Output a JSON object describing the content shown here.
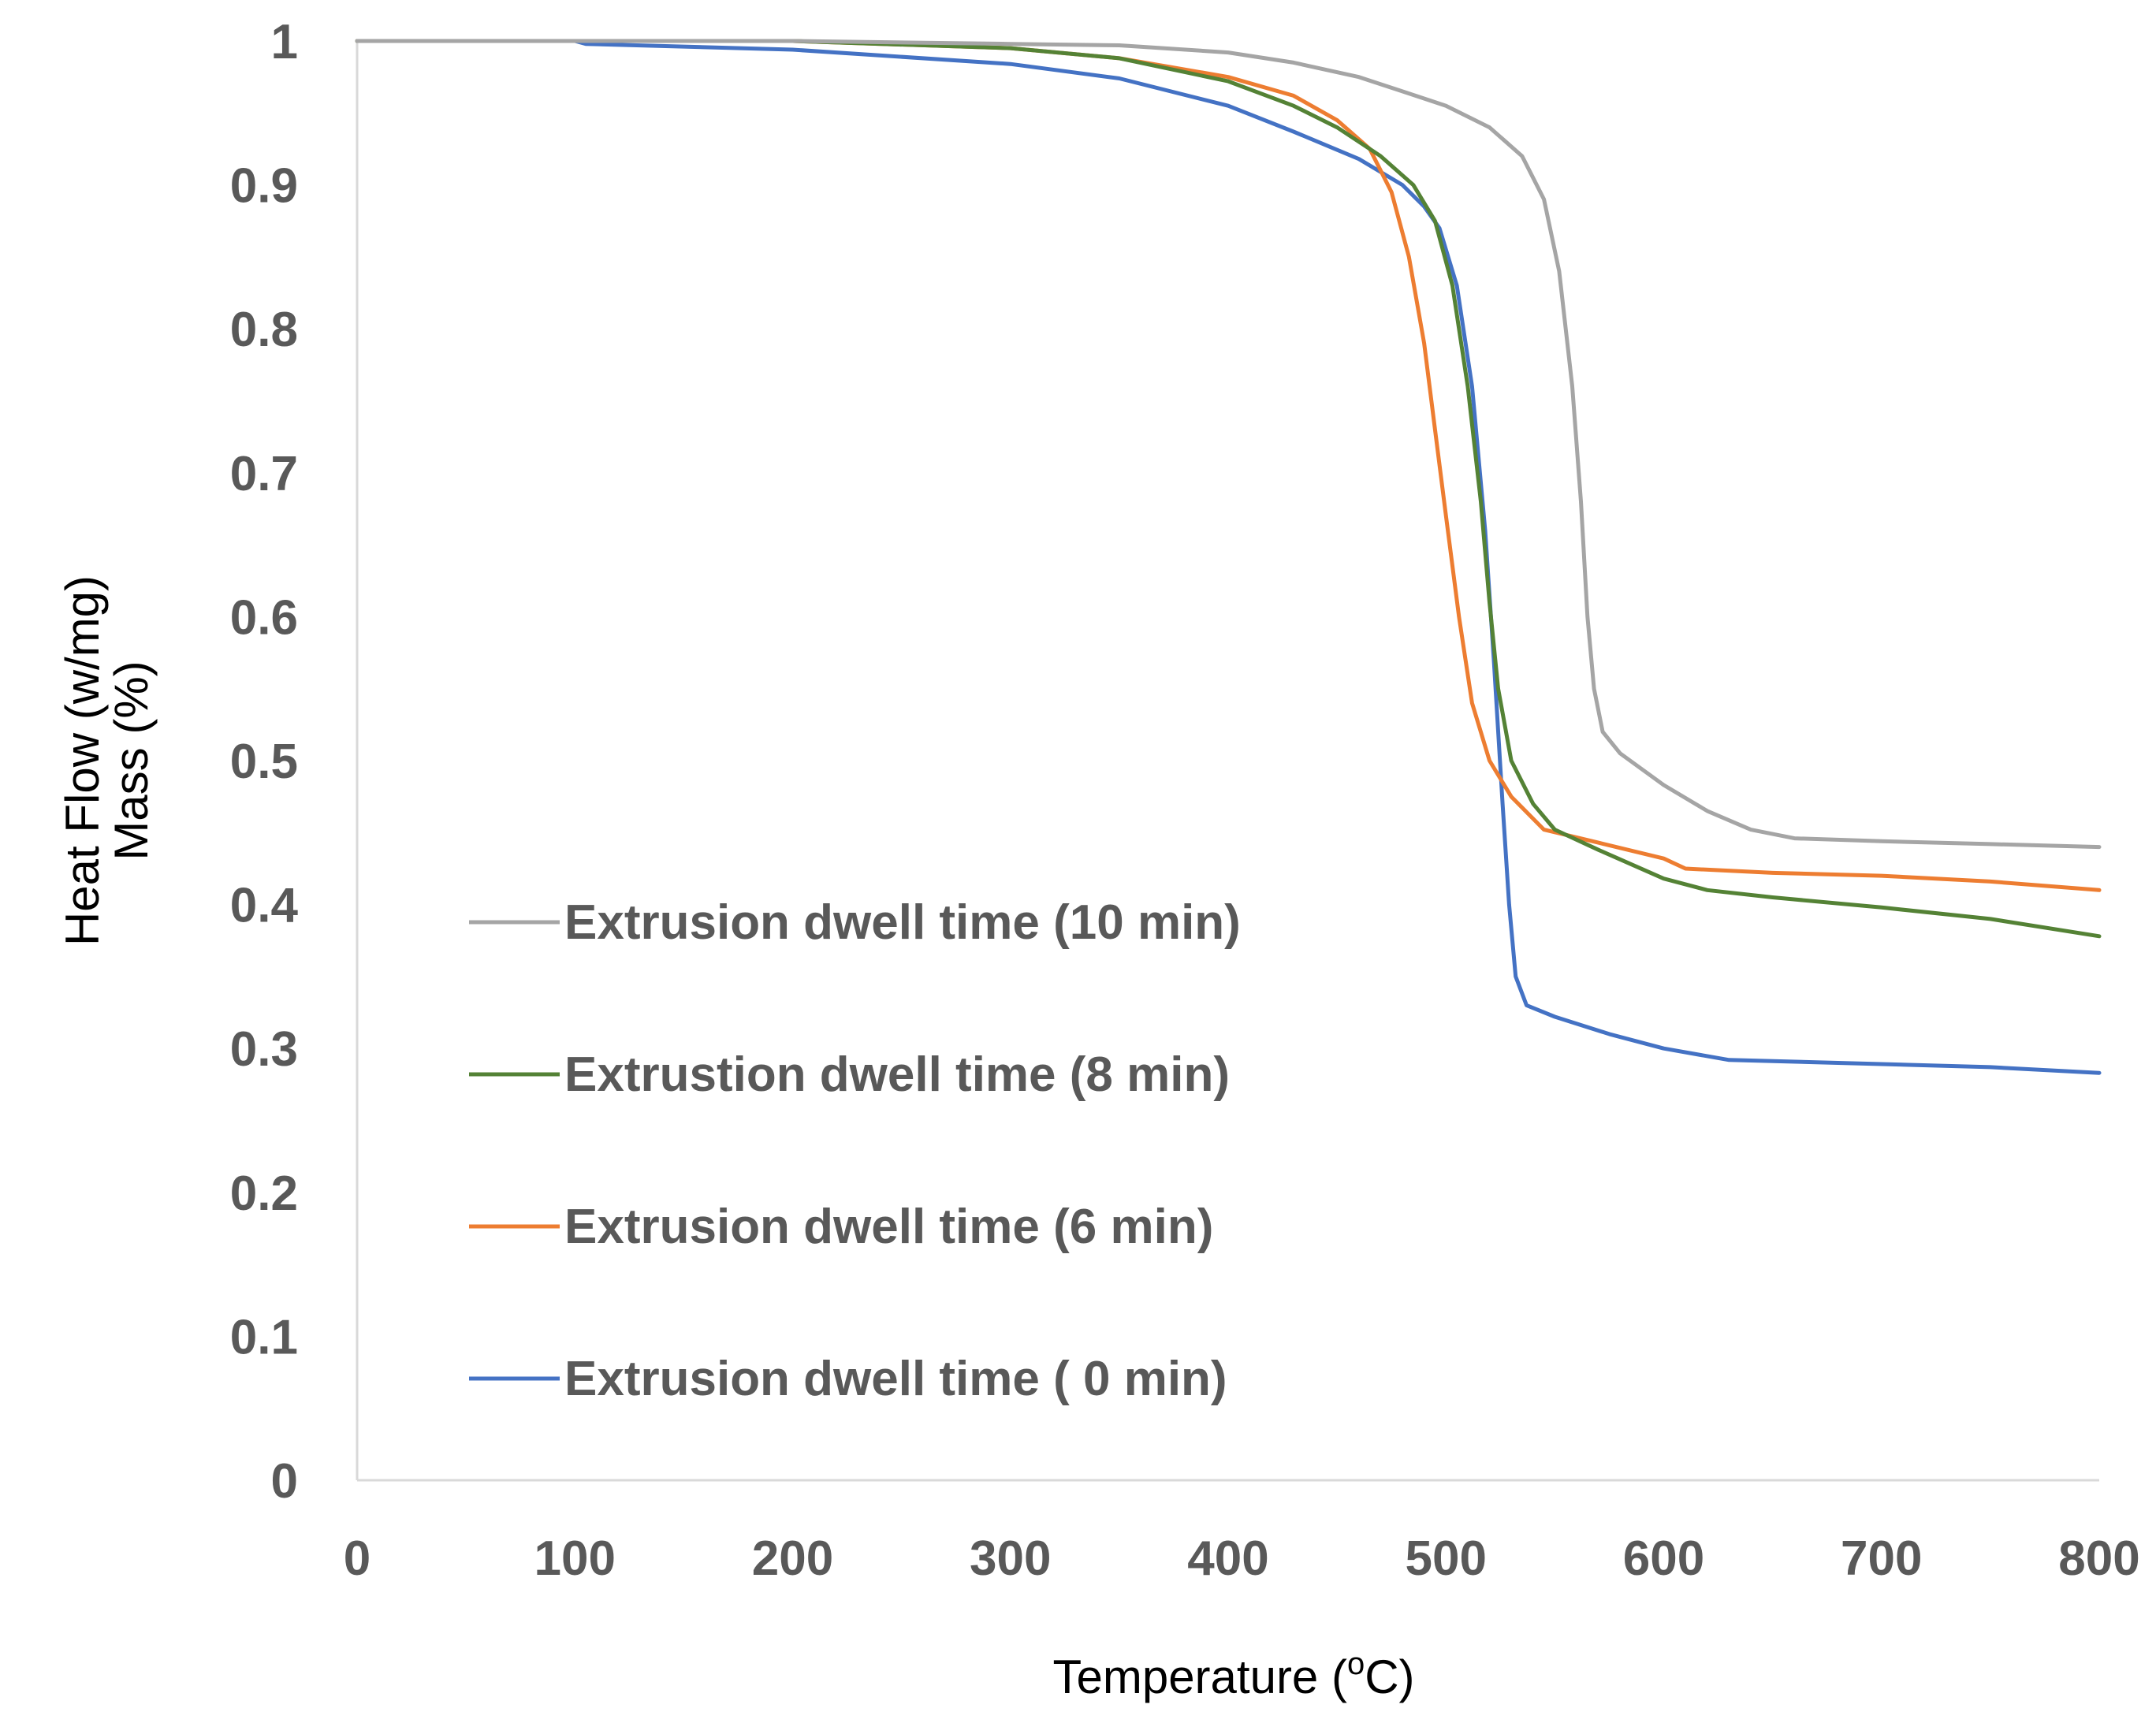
{
  "chart_data": {
    "type": "line",
    "title": "",
    "xlabel": "Temperature (°C)",
    "xlabel_parts": {
      "main": "Temperature (",
      "superscript": "o",
      "tail": "C)"
    },
    "ylabel_lines": [
      "Heat Flow (w/mg)",
      "Mass (%)"
    ],
    "xlim": [
      0,
      800
    ],
    "ylim": [
      0,
      1
    ],
    "x_ticks": [
      0,
      100,
      200,
      300,
      400,
      500,
      600,
      700,
      800
    ],
    "y_ticks": [
      0,
      0.1,
      0.2,
      0.3,
      0.4,
      0.5,
      0.6,
      0.7,
      0.8,
      0.9,
      1
    ],
    "y_tick_labels": [
      "0",
      "0.1",
      "0.2",
      "0.3",
      "0.4",
      "0.5",
      "0.6",
      "0.7",
      "0.8",
      "0.9",
      "1"
    ],
    "grid": false,
    "legend_position": "lower-left inside plot",
    "series": [
      {
        "name": "Extrusion dwell time (10 min)",
        "color": "#a5a5a5",
        "points": [
          [
            0,
            1
          ],
          [
            100,
            1
          ],
          [
            200,
            1
          ],
          [
            300,
            0.998
          ],
          [
            350,
            0.997
          ],
          [
            400,
            0.992
          ],
          [
            430,
            0.985
          ],
          [
            460,
            0.975
          ],
          [
            480,
            0.965
          ],
          [
            500,
            0.955
          ],
          [
            520,
            0.94
          ],
          [
            535,
            0.92
          ],
          [
            545,
            0.89
          ],
          [
            552,
            0.84
          ],
          [
            558,
            0.76
          ],
          [
            562,
            0.68
          ],
          [
            565,
            0.6
          ],
          [
            568,
            0.55
          ],
          [
            572,
            0.52
          ],
          [
            580,
            0.505
          ],
          [
            600,
            0.483
          ],
          [
            620,
            0.465
          ],
          [
            640,
            0.452
          ],
          [
            660,
            0.446
          ],
          [
            700,
            0.444
          ],
          [
            750,
            0.442
          ],
          [
            800,
            0.44
          ]
        ]
      },
      {
        "name": "Extrustion dwell time (8 min)",
        "color": "#548235",
        "points": [
          [
            0,
            1
          ],
          [
            100,
            1
          ],
          [
            200,
            1
          ],
          [
            300,
            0.995
          ],
          [
            350,
            0.988
          ],
          [
            400,
            0.972
          ],
          [
            430,
            0.955
          ],
          [
            450,
            0.94
          ],
          [
            470,
            0.92
          ],
          [
            485,
            0.9
          ],
          [
            495,
            0.875
          ],
          [
            503,
            0.83
          ],
          [
            510,
            0.76
          ],
          [
            516,
            0.68
          ],
          [
            520,
            0.61
          ],
          [
            524,
            0.55
          ],
          [
            530,
            0.5
          ],
          [
            540,
            0.47
          ],
          [
            550,
            0.452
          ],
          [
            570,
            0.438
          ],
          [
            600,
            0.418
          ],
          [
            620,
            0.41
          ],
          [
            650,
            0.405
          ],
          [
            700,
            0.398
          ],
          [
            750,
            0.39
          ],
          [
            800,
            0.378
          ]
        ]
      },
      {
        "name": "Extrusion dwell time (6 min)",
        "color": "#ed7d31",
        "points": [
          [
            0,
            1
          ],
          [
            100,
            1
          ],
          [
            200,
            1
          ],
          [
            300,
            0.995
          ],
          [
            350,
            0.988
          ],
          [
            400,
            0.975
          ],
          [
            430,
            0.962
          ],
          [
            450,
            0.945
          ],
          [
            465,
            0.925
          ],
          [
            475,
            0.895
          ],
          [
            483,
            0.85
          ],
          [
            490,
            0.79
          ],
          [
            495,
            0.73
          ],
          [
            500,
            0.67
          ],
          [
            506,
            0.6
          ],
          [
            512,
            0.54
          ],
          [
            520,
            0.5
          ],
          [
            530,
            0.475
          ],
          [
            545,
            0.452
          ],
          [
            570,
            0.443
          ],
          [
            600,
            0.432
          ],
          [
            610,
            0.425
          ],
          [
            650,
            0.422
          ],
          [
            700,
            0.42
          ],
          [
            750,
            0.416
          ],
          [
            800,
            0.41
          ]
        ]
      },
      {
        "name": "Extrusion dwell time ( 0 min)",
        "color": "#4472c4",
        "points": [
          [
            0,
            1
          ],
          [
            100,
            1
          ],
          [
            105,
            0.998
          ],
          [
            200,
            0.994
          ],
          [
            300,
            0.984
          ],
          [
            350,
            0.974
          ],
          [
            400,
            0.955
          ],
          [
            430,
            0.937
          ],
          [
            460,
            0.918
          ],
          [
            480,
            0.9
          ],
          [
            490,
            0.885
          ],
          [
            497,
            0.87
          ],
          [
            505,
            0.83
          ],
          [
            512,
            0.76
          ],
          [
            518,
            0.66
          ],
          [
            522,
            0.57
          ],
          [
            526,
            0.47
          ],
          [
            529,
            0.4
          ],
          [
            532,
            0.35
          ],
          [
            537,
            0.33
          ],
          [
            550,
            0.322
          ],
          [
            575,
            0.31
          ],
          [
            600,
            0.3
          ],
          [
            630,
            0.292
          ],
          [
            680,
            0.29
          ],
          [
            750,
            0.287
          ],
          [
            800,
            0.283
          ]
        ]
      }
    ]
  }
}
